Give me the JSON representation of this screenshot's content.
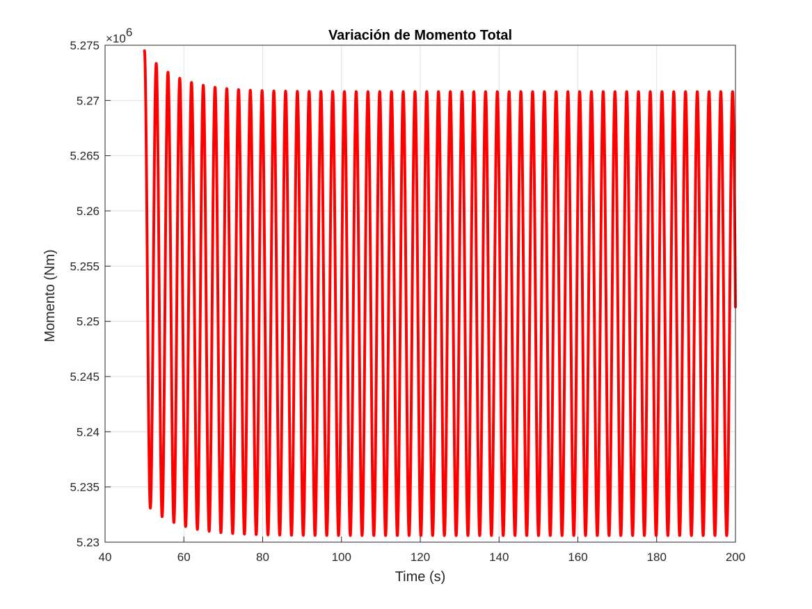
{
  "chart_data": {
    "type": "line",
    "title": "Variación de Momento Total",
    "xlabel": "Time (s)",
    "ylabel": "Momento (Nm)",
    "y_multiplier_base": "×10",
    "y_multiplier_exponent": "6",
    "xlim": [
      40,
      200
    ],
    "ylim": [
      5.23,
      5.275
    ],
    "x_ticks": [
      40,
      60,
      80,
      100,
      120,
      140,
      160,
      180,
      200
    ],
    "x_tick_labels": [
      "40",
      "60",
      "80",
      "100",
      "120",
      "140",
      "160",
      "180",
      "200"
    ],
    "y_ticks": [
      5.23,
      5.235,
      5.24,
      5.245,
      5.25,
      5.255,
      5.26,
      5.265,
      5.27,
      5.275
    ],
    "y_tick_labels": [
      "5.23",
      "5.235",
      "5.24",
      "5.245",
      "5.25",
      "5.255",
      "5.26",
      "5.265",
      "5.27",
      "5.275"
    ],
    "grid": true,
    "legend": "none",
    "series": [
      {
        "color": "#ff0000",
        "description": "Damped oscillation settling to steady state",
        "x_start": 50,
        "x_end": 200,
        "period_s": 3.0,
        "initial_max": 5.2745,
        "initial_min": 5.2336,
        "steady_max": 5.2708,
        "steady_min": 5.2306,
        "settling_time_constant_s": 8,
        "end_value": 5.2513
      }
    ],
    "axes_color": "#262626",
    "grid_color": "#dfdfdf"
  }
}
